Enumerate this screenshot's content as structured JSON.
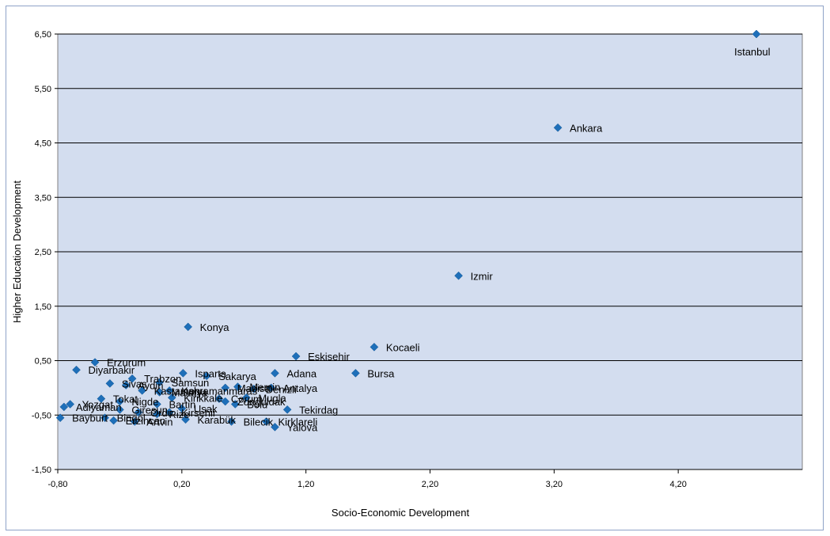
{
  "chart_data": {
    "type": "scatter",
    "xlabel": "Socio-Economic Development",
    "ylabel": "Higher Education Development",
    "xlim": [
      -0.8,
      5.2
    ],
    "ylim": [
      -1.5,
      6.5
    ],
    "x_ticks": [
      -0.8,
      0.2,
      1.2,
      2.2,
      3.2,
      4.2
    ],
    "x_tick_labels": [
      "-0,80",
      "0,20",
      "1,20",
      "2,20",
      "3,20",
      "4,20"
    ],
    "y_ticks": [
      -1.5,
      -0.5,
      0.5,
      1.5,
      2.5,
      3.5,
      4.5,
      5.5,
      6.5
    ],
    "y_tick_labels": [
      "-1,50",
      "-0,50",
      "0,50",
      "1,50",
      "2,50",
      "3,50",
      "4,50",
      "5,50",
      "6,50"
    ],
    "grid": "horizontal",
    "legend": "none",
    "marker": "diamond",
    "colors": {
      "plot_bg": "#d3ddef",
      "marker": "#1e6fb9",
      "grid": "#000000"
    },
    "points": [
      {
        "label": "Istanbul",
        "x": 4.83,
        "y": 6.5
      },
      {
        "label": "Ankara",
        "x": 3.23,
        "y": 4.78
      },
      {
        "label": "Izmir",
        "x": 2.43,
        "y": 2.06
      },
      {
        "label": "Kocaeli",
        "x": 1.75,
        "y": 0.75
      },
      {
        "label": "Bursa",
        "x": 1.6,
        "y": 0.27
      },
      {
        "label": "Eskisehir",
        "x": 1.12,
        "y": 0.58
      },
      {
        "label": "Konya",
        "x": 0.25,
        "y": 1.12
      },
      {
        "label": "Erzurum",
        "x": -0.5,
        "y": 0.47
      },
      {
        "label": "Diyarbakir",
        "x": -0.65,
        "y": 0.33
      },
      {
        "label": "Adana",
        "x": 0.95,
        "y": 0.27
      },
      {
        "label": "Antalya",
        "x": 0.92,
        "y": 0.0
      },
      {
        "label": "Tekirdag",
        "x": 1.05,
        "y": -0.4
      },
      {
        "label": "Kirklareli",
        "x": 0.88,
        "y": -0.62
      },
      {
        "label": "Yalova",
        "x": 0.95,
        "y": -0.72
      },
      {
        "label": "Bilecik",
        "x": 0.6,
        "y": -0.62
      },
      {
        "label": "Karabük",
        "x": 0.23,
        "y": -0.58
      },
      {
        "label": "Bolu",
        "x": 0.63,
        "y": -0.3
      },
      {
        "label": "Isparta",
        "x": 0.21,
        "y": 0.27
      },
      {
        "label": "Sakarya",
        "x": 0.4,
        "y": 0.22
      },
      {
        "label": "Trabzon",
        "x": -0.2,
        "y": 0.17
      },
      {
        "label": "Samsun",
        "x": 0.02,
        "y": 0.1
      },
      {
        "label": "Sivas",
        "x": -0.38,
        "y": 0.08
      },
      {
        "label": "Aydin",
        "x": -0.25,
        "y": 0.05
      },
      {
        "label": "Manisa",
        "x": 0.55,
        "y": 0.0
      },
      {
        "label": "Mersin",
        "x": 0.65,
        "y": 0.02
      },
      {
        "label": "Denizli",
        "x": 0.78,
        "y": -0.02
      },
      {
        "label": "Kahramanmaras",
        "x": 0.1,
        "y": -0.05
      },
      {
        "label": "Malatya",
        "x": 0.02,
        "y": -0.08
      },
      {
        "label": "Kastamonu",
        "x": -0.12,
        "y": -0.05
      },
      {
        "label": "Tokat",
        "x": -0.45,
        "y": -0.2
      },
      {
        "label": "Nigde",
        "x": -0.3,
        "y": -0.25
      },
      {
        "label": "Corum",
        "x": 0.5,
        "y": -0.2
      },
      {
        "label": "Zonguldak",
        "x": 0.55,
        "y": -0.25
      },
      {
        "label": "Mugla",
        "x": 0.72,
        "y": -0.18
      },
      {
        "label": "Kirikkale",
        "x": 0.12,
        "y": -0.18
      },
      {
        "label": "Bartin",
        "x": 0.0,
        "y": -0.3
      },
      {
        "label": "Usak",
        "x": 0.2,
        "y": -0.38
      },
      {
        "label": "Yozgat",
        "x": -0.7,
        "y": -0.3
      },
      {
        "label": "Adiyaman",
        "x": -0.75,
        "y": -0.35
      },
      {
        "label": "Giresun",
        "x": -0.3,
        "y": -0.4
      },
      {
        "label": "Ordu",
        "x": -0.15,
        "y": -0.45
      },
      {
        "label": "Rize",
        "x": 0.0,
        "y": -0.48
      },
      {
        "label": "Kirsehir",
        "x": 0.1,
        "y": -0.45
      },
      {
        "label": "Bayburt",
        "x": -0.78,
        "y": -0.55
      },
      {
        "label": "Bingöl",
        "x": -0.42,
        "y": -0.55
      },
      {
        "label": "Erzincan",
        "x": -0.35,
        "y": -0.6
      },
      {
        "label": "Artvin",
        "x": -0.18,
        "y": -0.62
      }
    ]
  }
}
